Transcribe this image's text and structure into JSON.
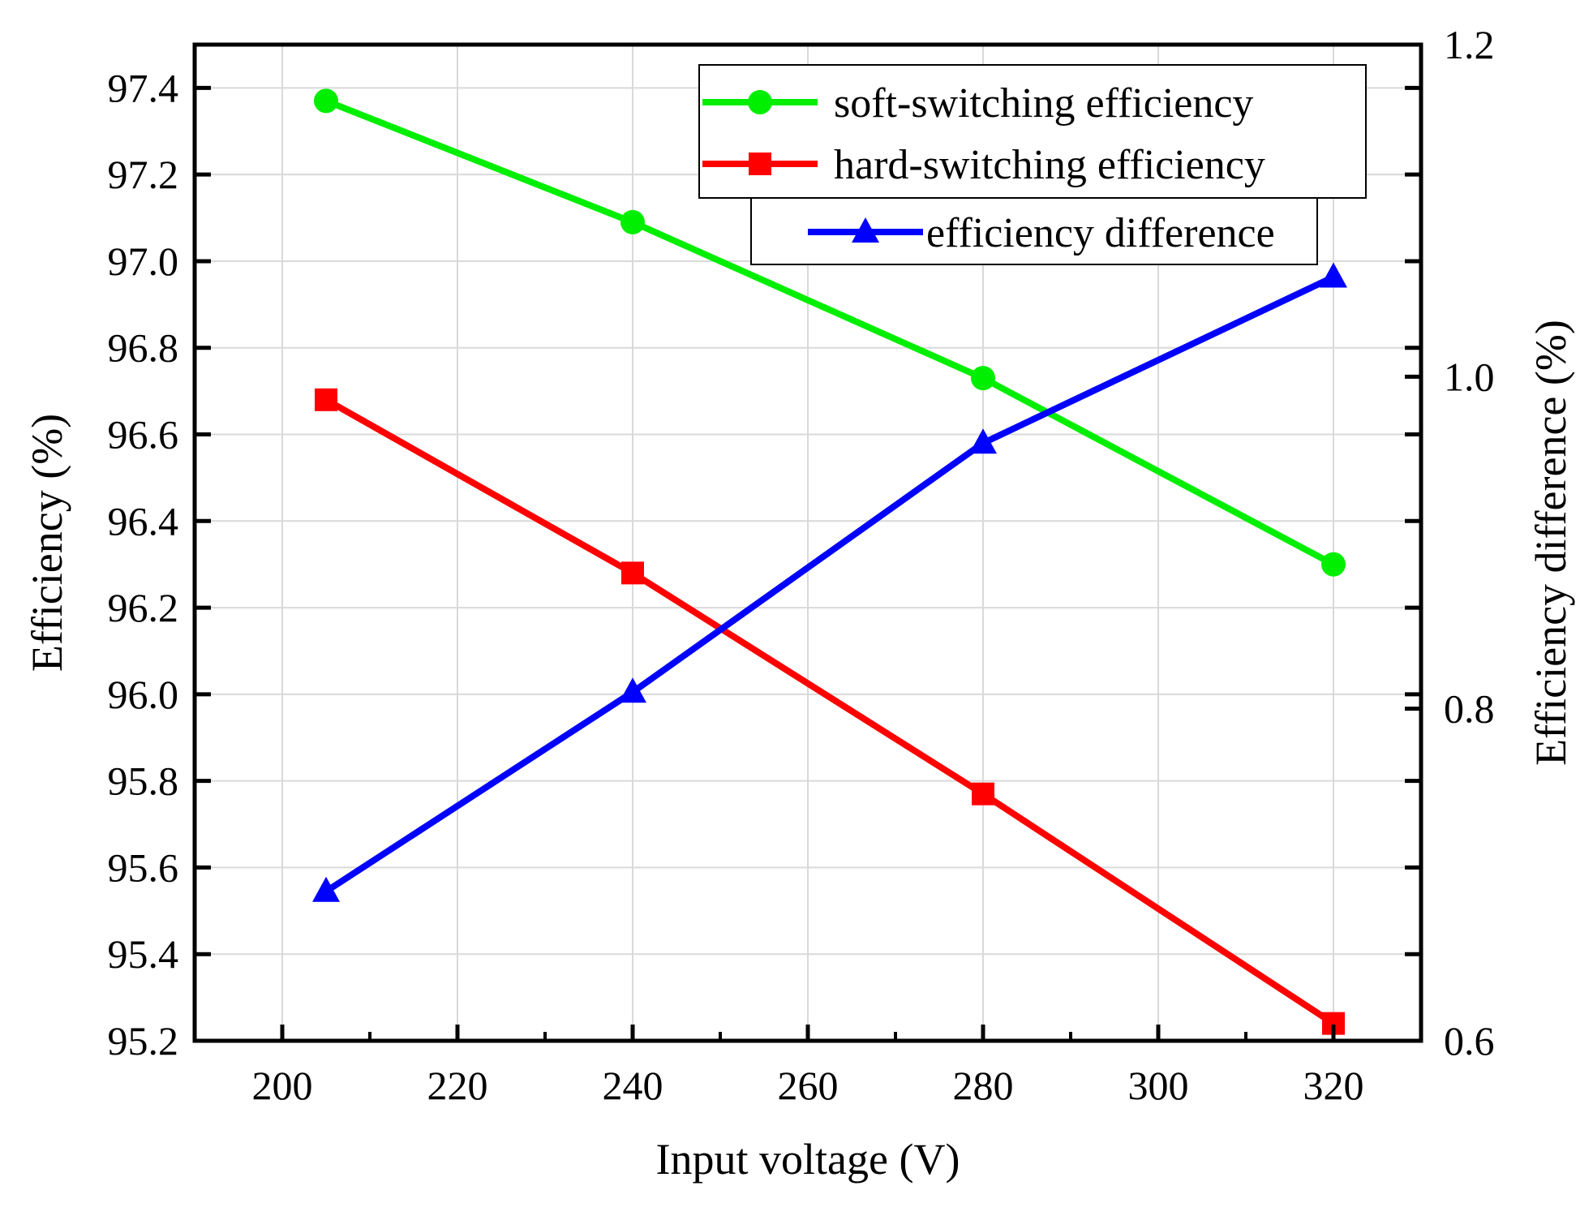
{
  "chart_data": {
    "type": "line",
    "title": "",
    "xlabel": "Input voltage (V)",
    "ylabel": "Efficiency (%)",
    "y2label": "Efficiency difference (%)",
    "xlim": [
      190,
      330
    ],
    "ylim": [
      95.2,
      97.5
    ],
    "y2lim": [
      0.6,
      1.2
    ],
    "x_ticks": [
      200,
      220,
      240,
      260,
      280,
      300,
      320
    ],
    "x_tick_labels": [
      "200",
      "220",
      "240",
      "260",
      "280",
      "300",
      "320"
    ],
    "y_ticks": [
      95.2,
      95.4,
      95.6,
      95.8,
      96.0,
      96.2,
      96.4,
      96.6,
      96.8,
      97.0,
      97.2,
      97.4
    ],
    "y_tick_labels": [
      "95.2",
      "95.4",
      "95.6",
      "95.8",
      "96.0",
      "96.2",
      "96.4",
      "96.6",
      "96.8",
      "97.0",
      "97.2",
      "97.4"
    ],
    "y2_ticks": [
      0.6,
      0.8,
      1.0,
      1.2
    ],
    "y2_tick_labels": [
      "0.6",
      "0.8",
      "1.0",
      "1.2"
    ],
    "grid": true,
    "legend_position": "top-right",
    "x": [
      205,
      240,
      280,
      320
    ],
    "series": [
      {
        "name": "soft-switching efficiency",
        "axis": "left",
        "color": "#00ee00",
        "marker": "circle",
        "values": [
          97.37,
          97.09,
          96.73,
          96.3
        ]
      },
      {
        "name": "hard-switching efficiency",
        "axis": "left",
        "color": "#ff0000",
        "marker": "square",
        "values": [
          96.68,
          96.28,
          95.77,
          95.24
        ]
      },
      {
        "name": "efficiency difference",
        "axis": "right",
        "color": "#0000ff",
        "marker": "triangle",
        "values": [
          0.69,
          0.81,
          0.96,
          1.06
        ]
      }
    ]
  }
}
